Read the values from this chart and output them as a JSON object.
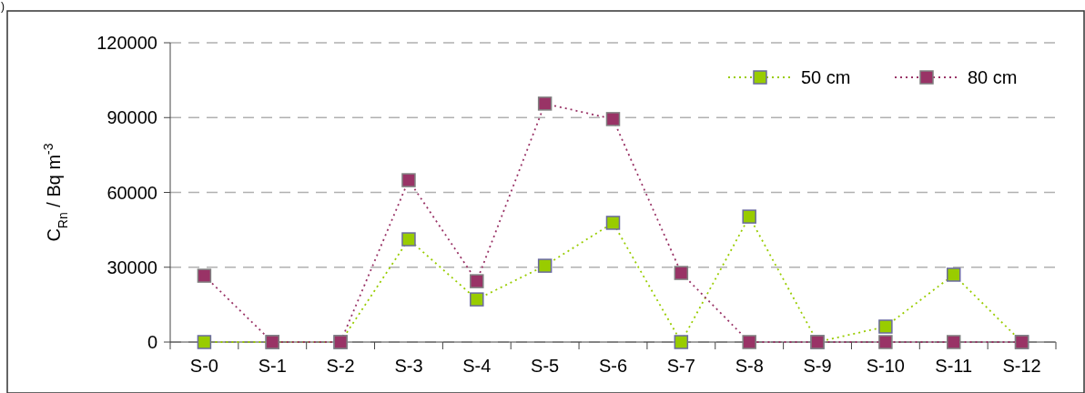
{
  "chart_data": {
    "type": "line",
    "ylabel": "C$_{Rn}$ / Bq m$^{-3}$",
    "annotations": [
      ")"
    ],
    "categories": [
      "S-0",
      "S-1",
      "S-2",
      "S-3",
      "S-4",
      "S-5",
      "S-6",
      "S-7",
      "S-8",
      "S-9",
      "S-10",
      "S-11",
      "S-12"
    ],
    "series": [
      {
        "name": "50 cm",
        "color": "#99cc00",
        "values": [
          0,
          0,
          0,
          41200,
          17100,
          30600,
          47800,
          0,
          50300,
          0,
          6200,
          27000,
          0
        ]
      },
      {
        "name": "80 cm",
        "color": "#993366",
        "values": [
          26600,
          0,
          0,
          64900,
          24400,
          95600,
          89400,
          27700,
          0,
          0,
          0,
          0,
          0
        ]
      }
    ],
    "ylim": [
      0,
      120000
    ],
    "yticks": [
      0,
      30000,
      60000,
      90000,
      120000
    ],
    "grid": "y",
    "legend": "top right",
    "marker": "square",
    "line_style": "dotted"
  }
}
